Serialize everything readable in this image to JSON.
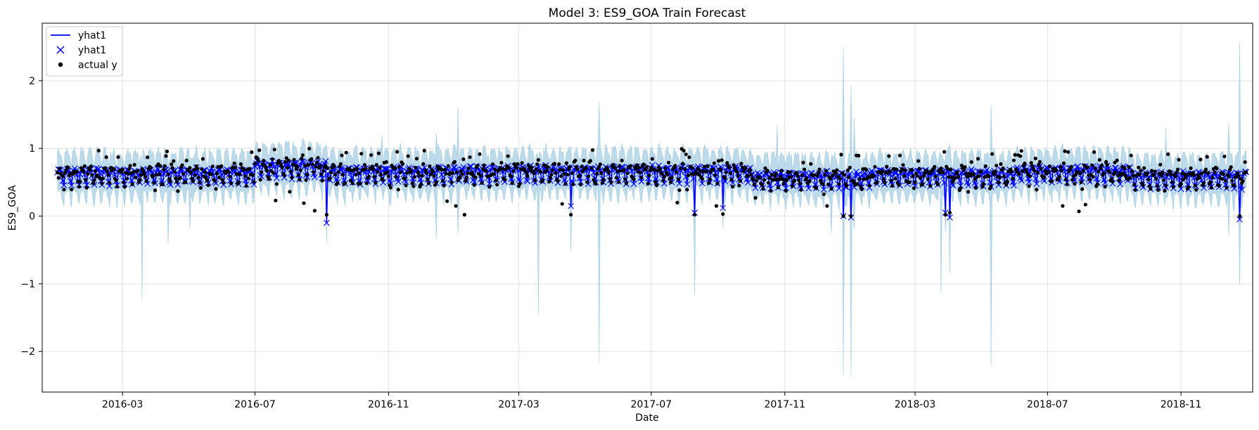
{
  "chart_data": {
    "type": "line",
    "title": "Model 3: ES9_GOA Train Forecast",
    "xlabel": "Date",
    "ylabel": "ES9_GOA",
    "x_range": [
      "2015-12-18",
      "2019-01-06"
    ],
    "x_data_range": [
      "2016-01-01",
      "2018-12-31"
    ],
    "ylim": [
      -2.6,
      2.85
    ],
    "y_ticks": [
      -2,
      -1,
      0,
      1,
      2
    ],
    "y_tick_labels": [
      "−2",
      "−1",
      "0",
      "1",
      "2"
    ],
    "x_ticks": [
      "2016-03-01",
      "2016-07-01",
      "2016-11-01",
      "2017-03-01",
      "2017-07-01",
      "2017-11-01",
      "2018-03-01",
      "2018-07-01",
      "2018-11-01"
    ],
    "x_tick_labels": [
      "2016-03",
      "2016-07",
      "2016-11",
      "2017-03",
      "2017-07",
      "2017-11",
      "2018-03",
      "2018-07",
      "2018-11"
    ],
    "grid": true,
    "legend_position": "upper-left",
    "series": [
      {
        "name": "yhat1",
        "kind": "line",
        "color": "#0000ff"
      },
      {
        "name": "yhat1",
        "kind": "x-markers",
        "color": "#0000ff"
      },
      {
        "name": "actual y",
        "kind": "dots",
        "color": "#000000"
      }
    ],
    "band_color": "#a6cee3",
    "baseline_segments": [
      {
        "start": "2016-01-01",
        "end": "2016-06-30",
        "level": 0.6
      },
      {
        "start": "2016-06-30",
        "end": "2016-09-05",
        "level": 0.7
      },
      {
        "start": "2016-09-05",
        "end": "2017-01-15",
        "level": 0.62
      },
      {
        "start": "2017-01-15",
        "end": "2017-09-30",
        "level": 0.63
      },
      {
        "start": "2017-09-30",
        "end": "2018-01-15",
        "level": 0.55
      },
      {
        "start": "2018-01-15",
        "end": "2018-06-01",
        "level": 0.58
      },
      {
        "start": "2018-06-01",
        "end": "2018-09-15",
        "level": 0.63
      },
      {
        "start": "2018-09-15",
        "end": "2018-12-31",
        "level": 0.55
      }
    ],
    "weekly_amplitude": 0.13,
    "noise_std": 0.06,
    "band_halfwidth": 0.22,
    "dips": [
      {
        "date": "2016-09-05",
        "yhat": -0.1,
        "actual": 0.02
      },
      {
        "date": "2017-04-18",
        "yhat": 0.15,
        "actual": 0.02
      },
      {
        "date": "2017-08-10",
        "yhat": 0.05,
        "actual": 0.02
      },
      {
        "date": "2017-09-05",
        "yhat": 0.12,
        "actual": 0.03
      },
      {
        "date": "2017-12-25",
        "yhat": 0.0,
        "actual": 0.0
      },
      {
        "date": "2018-01-01",
        "yhat": -0.02,
        "actual": 0.0
      },
      {
        "date": "2018-03-29",
        "yhat": 0.05,
        "actual": 0.02
      },
      {
        "date": "2018-04-02",
        "yhat": -0.02,
        "actual": 0.05
      },
      {
        "date": "2018-12-25",
        "yhat": -0.05,
        "actual": 0.0
      }
    ],
    "band_spikes": [
      {
        "date": "2016-03-19",
        "low": -1.22,
        "high": 0.7
      },
      {
        "date": "2016-04-12",
        "low": -0.42,
        "high": 0.75
      },
      {
        "date": "2016-05-02",
        "low": -0.2,
        "high": 0.8
      },
      {
        "date": "2016-10-26",
        "low": 0.35,
        "high": 1.2
      },
      {
        "date": "2016-12-15",
        "low": -0.32,
        "high": 1.22
      },
      {
        "date": "2017-01-04",
        "low": -0.25,
        "high": 1.6
      },
      {
        "date": "2017-03-19",
        "low": -1.45,
        "high": 0.8
      },
      {
        "date": "2017-04-18",
        "low": -0.5,
        "high": 1.02
      },
      {
        "date": "2017-05-14",
        "low": -2.15,
        "high": 1.7
      },
      {
        "date": "2017-08-10",
        "low": -1.17,
        "high": 0.9
      },
      {
        "date": "2017-10-25",
        "low": 0.3,
        "high": 1.35
      },
      {
        "date": "2017-12-14",
        "low": -0.26,
        "high": 0.9
      },
      {
        "date": "2017-12-25",
        "low": -2.35,
        "high": 2.5
      },
      {
        "date": "2018-01-01",
        "low": -2.38,
        "high": 1.93
      },
      {
        "date": "2018-01-04",
        "low": -0.2,
        "high": 1.45
      },
      {
        "date": "2018-03-25",
        "low": -1.15,
        "high": 0.9
      },
      {
        "date": "2018-04-02",
        "low": -0.85,
        "high": 1.05
      },
      {
        "date": "2018-05-10",
        "low": -2.22,
        "high": 1.65
      },
      {
        "date": "2018-10-18",
        "low": 0.3,
        "high": 1.3
      },
      {
        "date": "2018-12-15",
        "low": -0.3,
        "high": 1.38
      },
      {
        "date": "2018-12-25",
        "low": -1.02,
        "high": 2.56
      }
    ]
  }
}
